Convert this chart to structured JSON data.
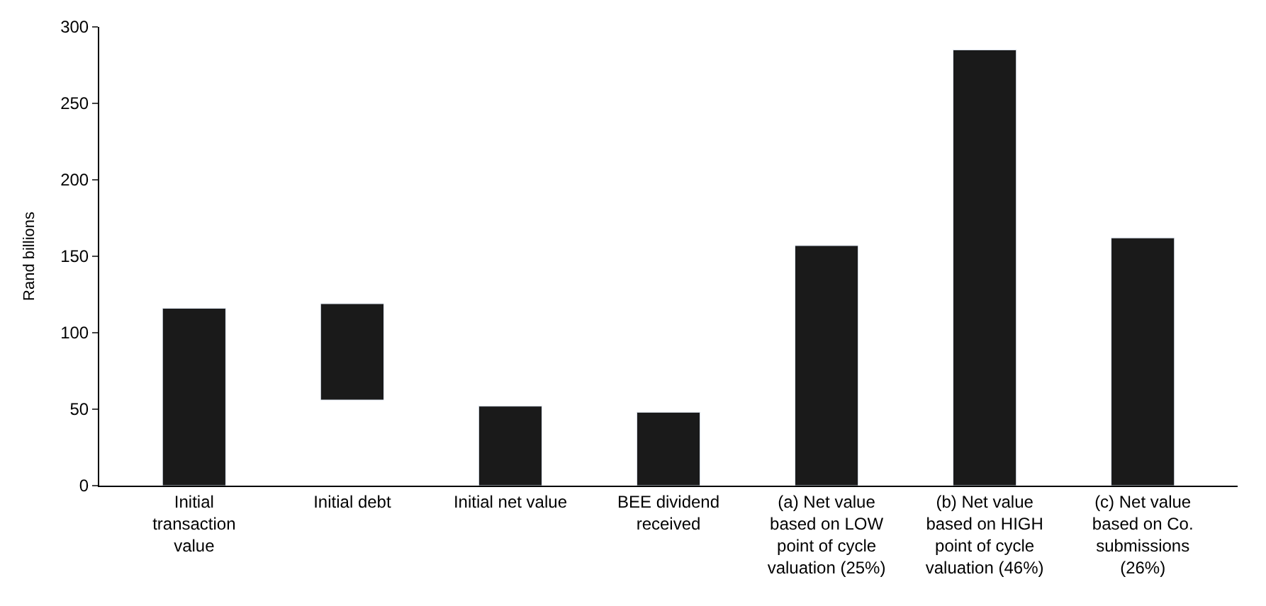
{
  "chart_data": {
    "type": "bar",
    "ylabel": "Rand billions",
    "categories": [
      "Initial\ntransaction\nvalue",
      "Initial debt",
      "Initial net value",
      "BEE dividend\nreceived",
      "(a) Net value\nbased on LOW\npoint of cycle\nvaluation (25%)",
      "(b) Net value\nbased on HIGH\npoint of cycle\nvaluation (46%)",
      "(c) Net value\nbased on Co.\nsubmissions\n(26%)"
    ],
    "values": [
      116,
      63,
      52,
      48,
      157,
      285,
      162
    ],
    "base": [
      0,
      56,
      0,
      0,
      0,
      0,
      0
    ],
    "color": "#1a1a1a",
    "ylim": [
      0,
      300
    ],
    "yticks": [
      0,
      50,
      100,
      150,
      200,
      250,
      300
    ]
  }
}
